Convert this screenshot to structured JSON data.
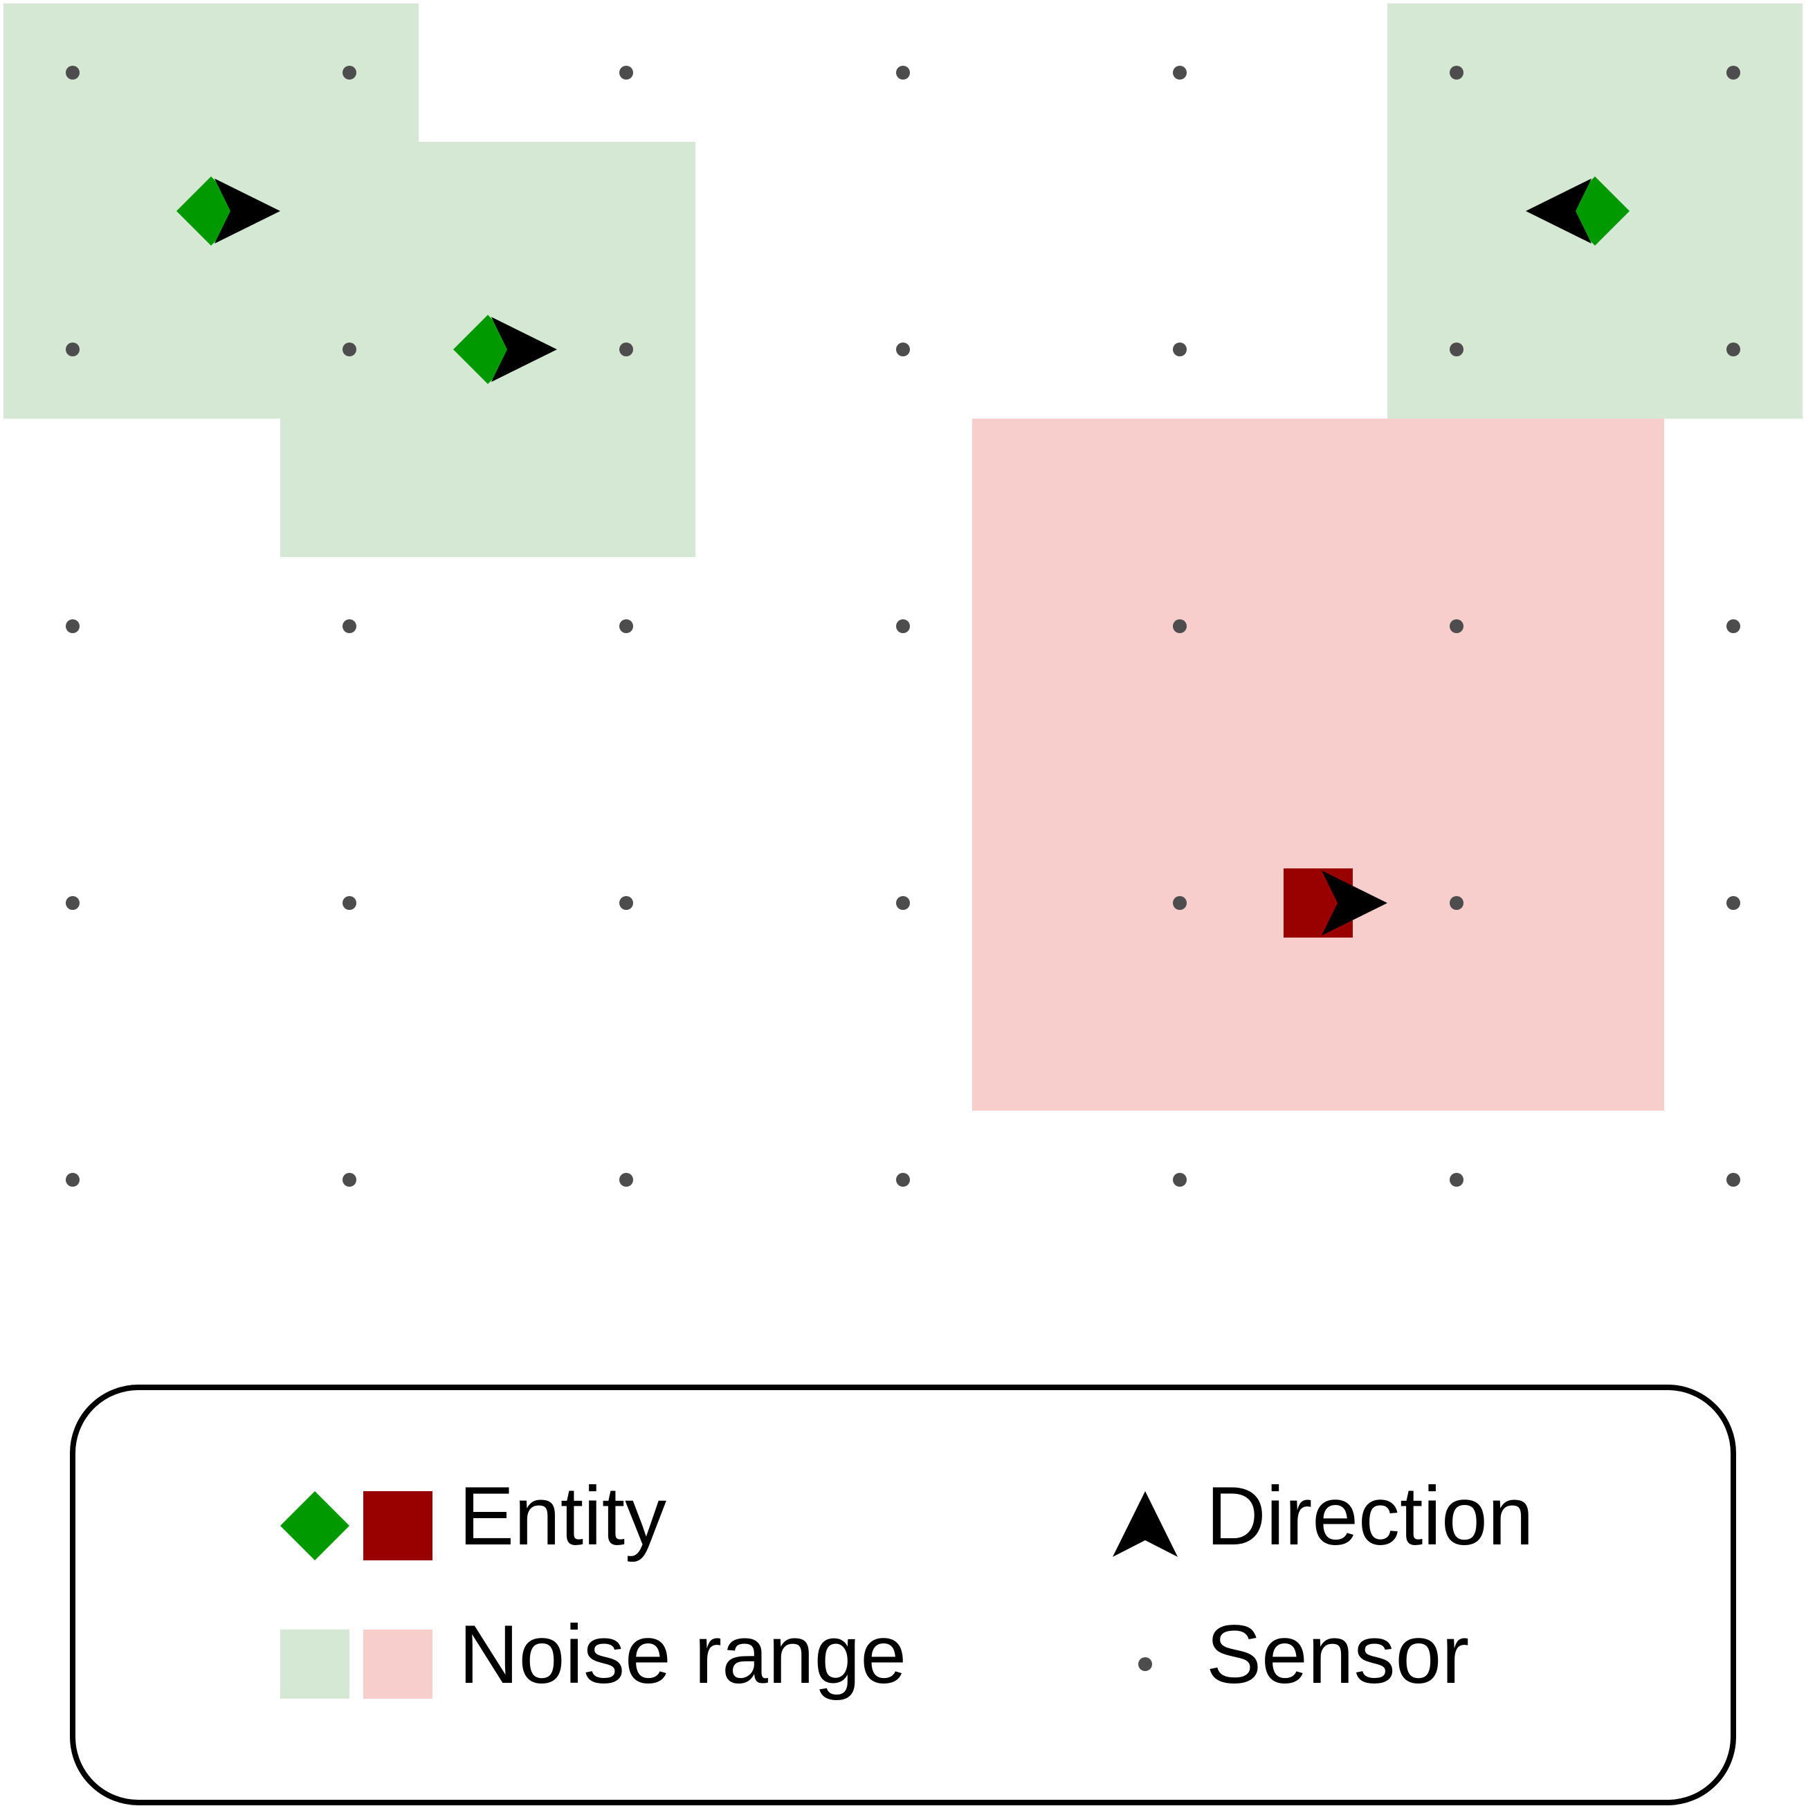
{
  "diagram": {
    "grid": {
      "columns": 7,
      "rows": 5,
      "sensor_color": "#4d4d4d"
    },
    "noise_ranges": [
      {
        "id": "noise-range-green-1",
        "cells_col": [
          0,
          1
        ],
        "cells_row": [
          0,
          1
        ],
        "color": "#d5e8d4"
      },
      {
        "id": "noise-range-green-2",
        "cells_col": [
          1,
          2
        ],
        "cells_row": [
          0.5,
          1.5
        ],
        "color": "#d5e8d4"
      },
      {
        "id": "noise-range-green-3",
        "cells_col": [
          5,
          6
        ],
        "cells_row": [
          0,
          1
        ],
        "color": "#d5e8d4"
      },
      {
        "id": "noise-range-red-1",
        "cells_col": [
          3.5,
          5.5
        ],
        "cells_row": [
          1.5,
          3.5
        ],
        "color": "#f8cecc"
      }
    ],
    "entities": [
      {
        "id": "entity-green-1",
        "shape": "diamond",
        "col": 0.5,
        "row": 0.5,
        "color": "#009900",
        "direction": "right"
      },
      {
        "id": "entity-green-2",
        "shape": "diamond",
        "col": 1.5,
        "row": 1,
        "color": "#009900",
        "direction": "right"
      },
      {
        "id": "entity-green-3",
        "shape": "diamond",
        "col": 5.5,
        "row": 0.5,
        "color": "#009900",
        "direction": "left"
      },
      {
        "id": "entity-red-1",
        "shape": "square",
        "col": 4.5,
        "row": 3,
        "color": "#990000",
        "direction": "right"
      }
    ],
    "direction_color": "#000000"
  },
  "legend": {
    "entity_label": "Entity",
    "noise_range_label": "Noise range",
    "direction_label": "Direction",
    "sensor_label": "Sensor",
    "entity_colors": [
      "#009900",
      "#990000"
    ],
    "noise_colors": [
      "#d5e8d4",
      "#f8cecc"
    ]
  }
}
